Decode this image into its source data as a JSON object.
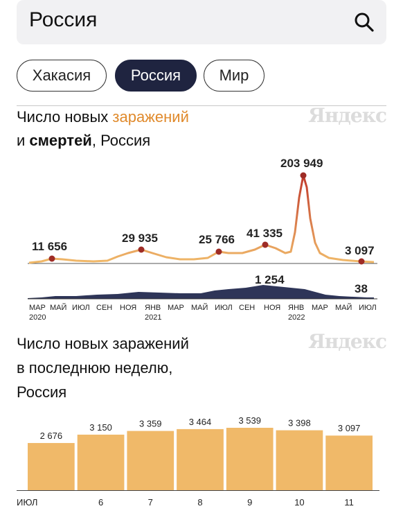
{
  "search": {
    "query": "Россия"
  },
  "chips": [
    "Хакасия",
    "Россия",
    "Мир"
  ],
  "chart1": {
    "title_line1_prefix": "Число новых ",
    "title_line1_highlight": "заражений",
    "title_line2_prefix": "и ",
    "title_line2_bold": "смертей",
    "title_line2_suffix": ", Россия",
    "watermark": "Яндекс",
    "peaks": [
      "11 656",
      "29 935",
      "25 766",
      "41 335",
      "203 949",
      "3 097"
    ],
    "death_labels": [
      "1 254",
      "38"
    ],
    "x_months": [
      "МАР",
      "МАЙ",
      "ИЮЛ",
      "СЕН",
      "НОЯ",
      "ЯНВ",
      "МАР",
      "МАЙ",
      "ИЮЛ",
      "СЕН",
      "НОЯ",
      "ЯНВ",
      "МАР",
      "МАЙ",
      "ИЮЛ"
    ],
    "x_years": [
      "2020",
      "2021",
      "2022"
    ]
  },
  "chart2": {
    "title_lines": [
      "Число новых заражений",
      "в последнюю неделю,",
      "Россия"
    ],
    "watermark": "Яндекс"
  },
  "chart_data": [
    {
      "type": "area",
      "title": "Число новых заражений и смертей, Россия",
      "series": [
        {
          "name": "заражений",
          "labeled_points": [
            11656,
            29935,
            25766,
            41335,
            203949,
            3097
          ]
        },
        {
          "name": "смертей",
          "labeled_points": [
            1254,
            38
          ]
        }
      ],
      "x_ticks": [
        "МАР 2020",
        "МАЙ",
        "ИЮЛ",
        "СЕН",
        "НОЯ",
        "ЯНВ 2021",
        "МАР",
        "МАЙ",
        "ИЮЛ",
        "СЕН",
        "НОЯ",
        "ЯНВ 2022",
        "МАР",
        "МАЙ",
        "ИЮЛ"
      ]
    },
    {
      "type": "bar",
      "title": "Число новых заражений в последнюю неделю, Россия",
      "categories": [
        "ИЮЛ",
        "6",
        "7",
        "8",
        "9",
        "10",
        "11"
      ],
      "values": [
        2676,
        3150,
        3359,
        3464,
        3539,
        3398,
        3097
      ],
      "value_labels": [
        "2 676",
        "3 150",
        "3 359",
        "3 464",
        "3 539",
        "3 398",
        "3 097"
      ],
      "category_colors": [
        "#222222",
        "#222222",
        "#222222",
        "#222222",
        "#c0392b",
        "#c0392b",
        "#222222"
      ],
      "bar_color": "#f0b969",
      "ylim": [
        0,
        3539
      ]
    }
  ]
}
